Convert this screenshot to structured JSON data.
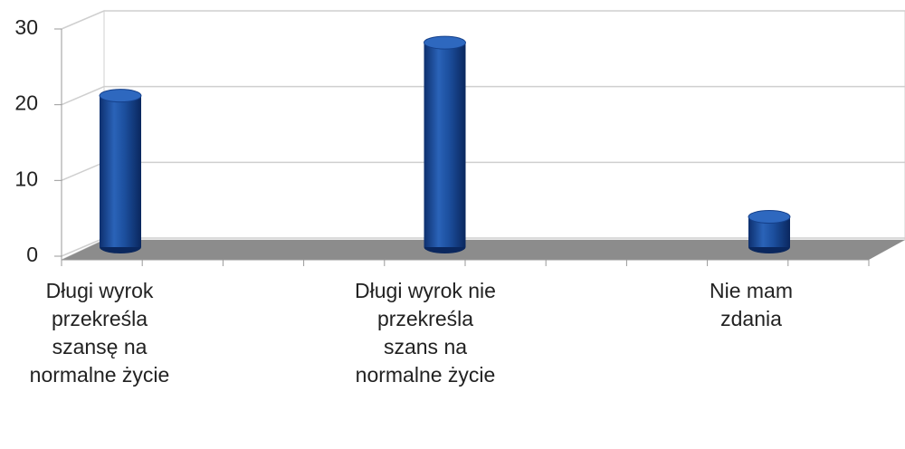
{
  "chart_data": {
    "type": "bar",
    "categories": [
      "Długi wyrok przekreśla szansę na normalne życie",
      "Długi wyrok nie przekreśla szans na normalne życie",
      "Nie mam zdania"
    ],
    "values": [
      20,
      27,
      4
    ],
    "color": "#1c4f9e",
    "ylim": [
      0,
      30
    ],
    "yticks": [
      0,
      10,
      20,
      30
    ],
    "grid": true
  }
}
